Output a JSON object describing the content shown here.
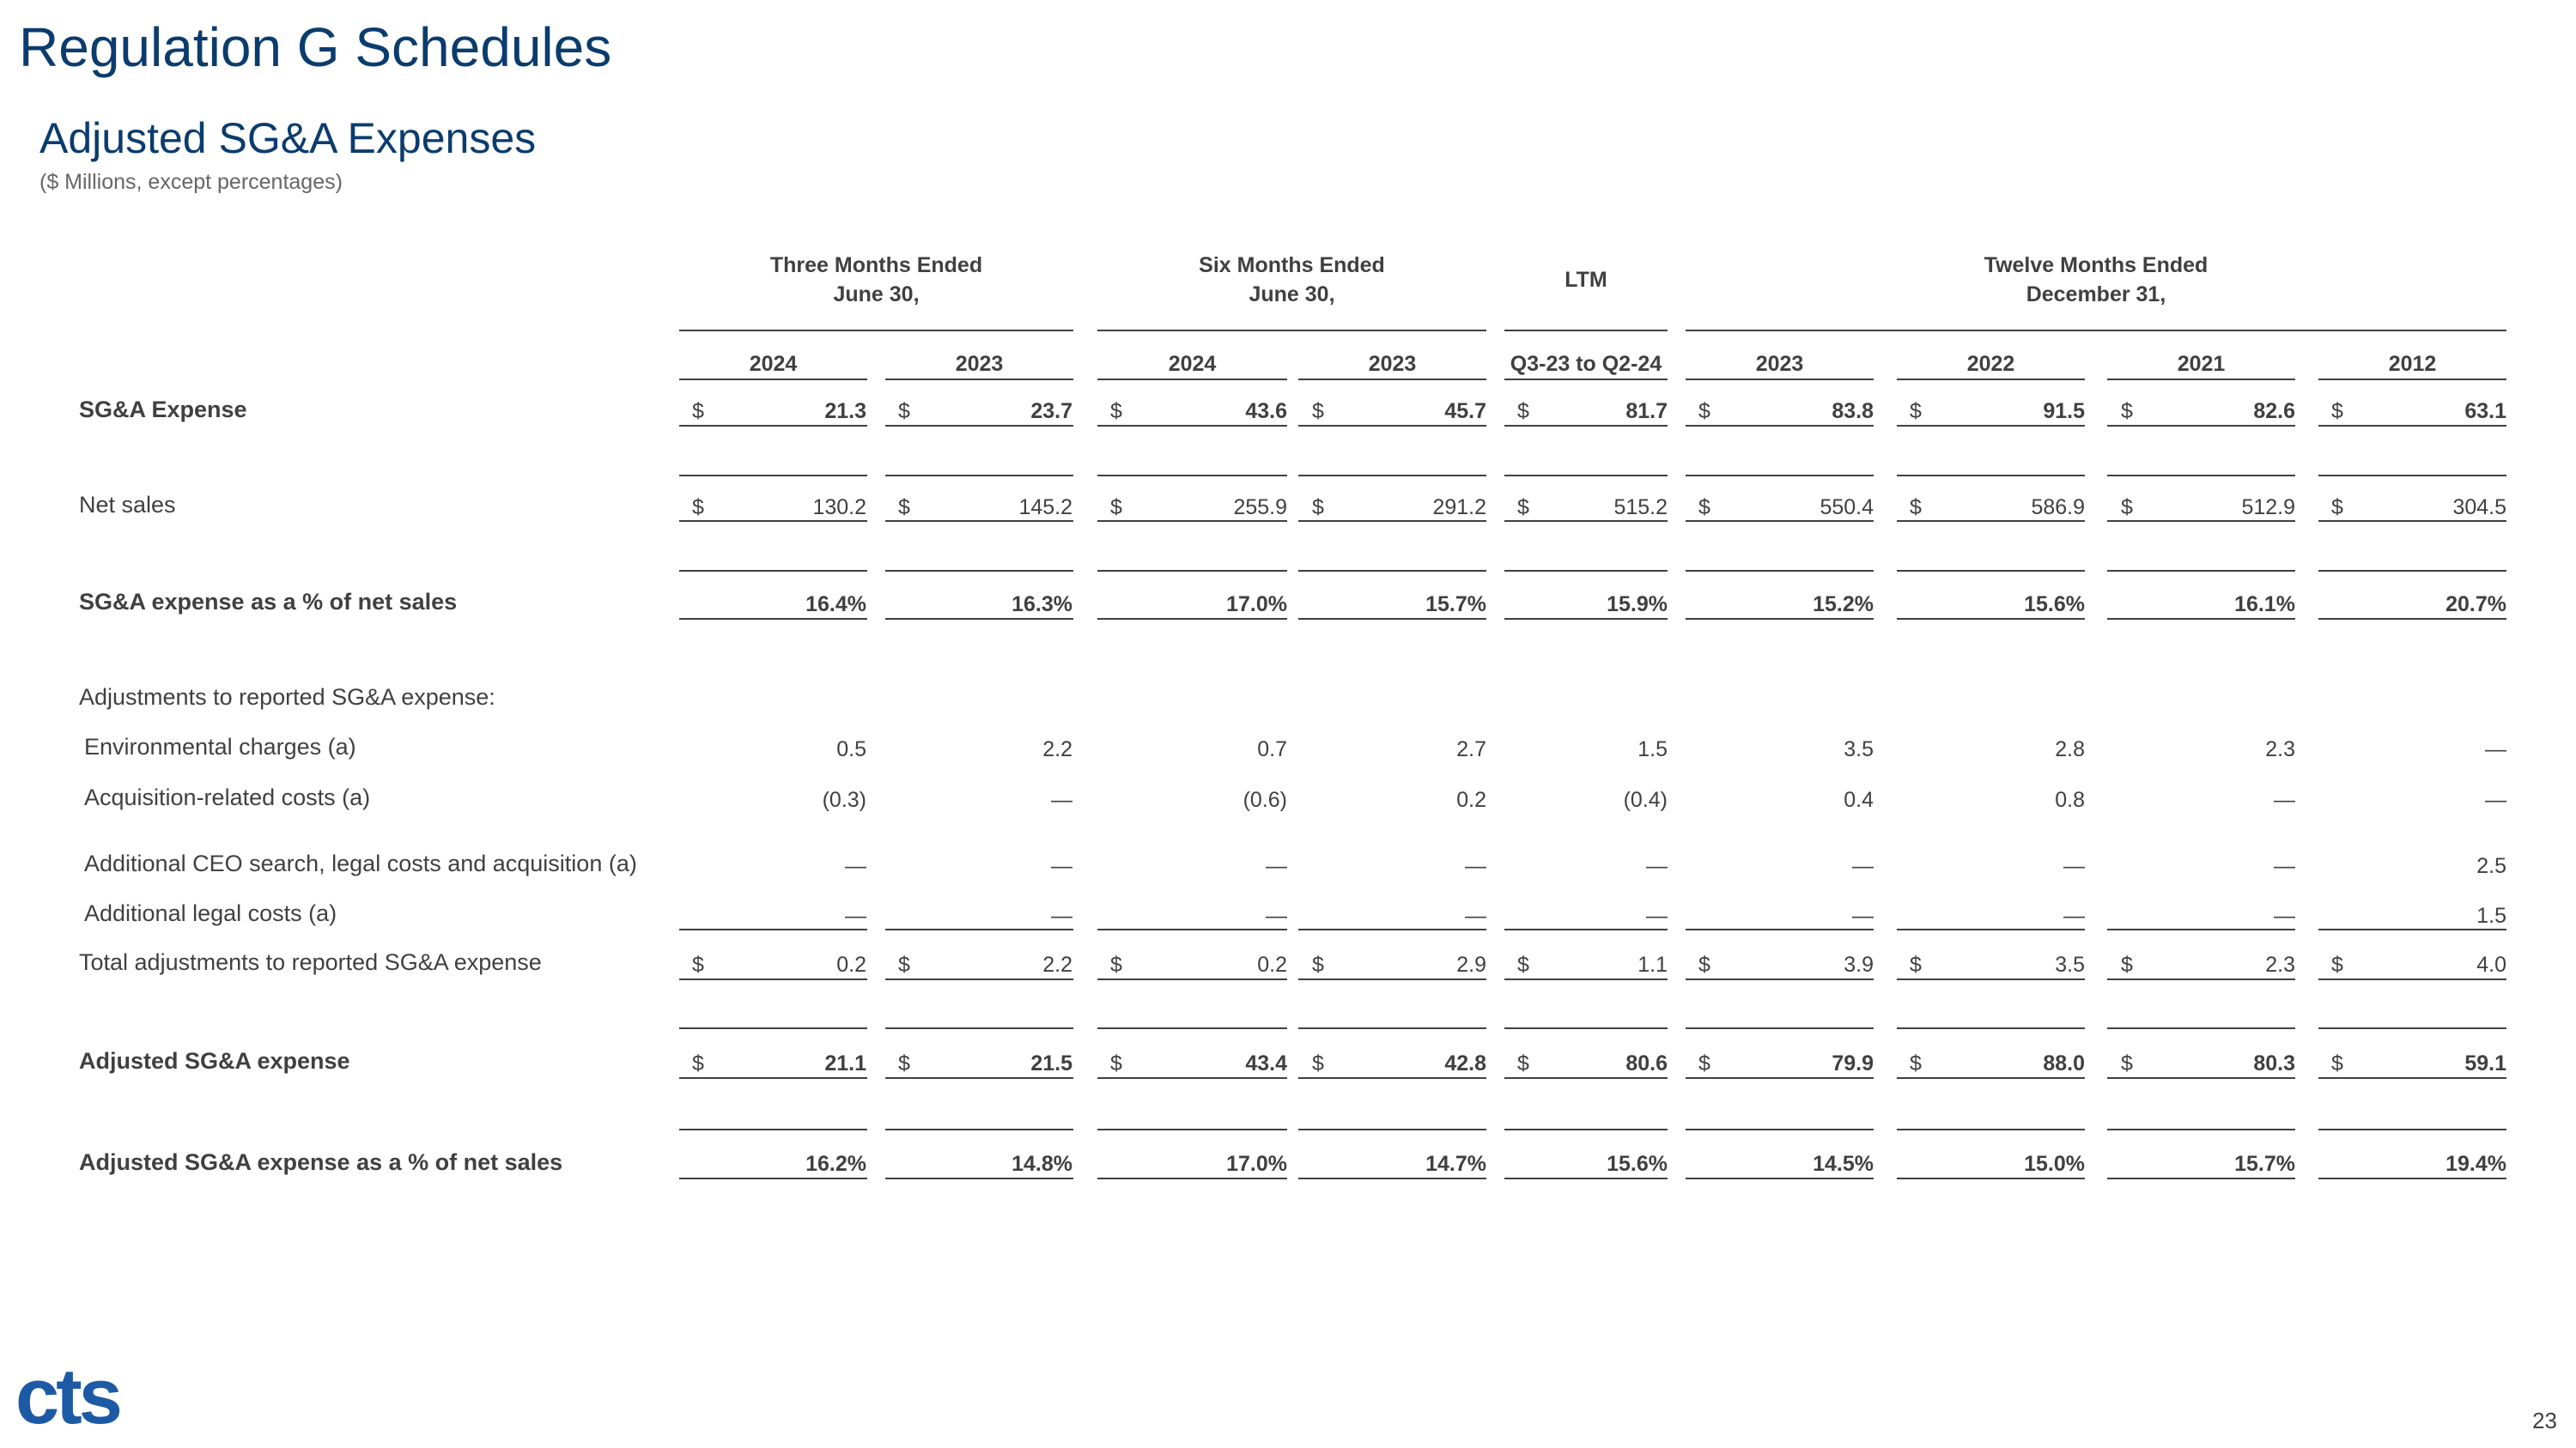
{
  "header": {
    "title": "Regulation G Schedules",
    "subtitle": "Adjusted SG&A Expenses",
    "units": "($ Millions, except percentages)"
  },
  "table": {
    "groups": [
      {
        "label": [
          "Three Months Ended",
          "June 30,"
        ],
        "span": [
          0,
          1
        ]
      },
      {
        "label": [
          "Six Months Ended",
          "June 30,"
        ],
        "span": [
          2,
          3
        ]
      },
      {
        "label": [
          "LTM"
        ],
        "span": [
          4,
          4
        ]
      },
      {
        "label": [
          "Twelve Months Ended",
          "December 31,"
        ],
        "span": [
          5,
          8
        ]
      }
    ],
    "columns": [
      "2024",
      "2023",
      "2024",
      "2023",
      "Q3-23 to Q2-24",
      "2023",
      "2022",
      "2021",
      "2012"
    ],
    "rows": [
      {
        "label": "SG&A Expense",
        "bold": true,
        "currency": "$",
        "cells": [
          "21.3",
          "23.7",
          "43.6",
          "45.7",
          "81.7",
          "83.8",
          "91.5",
          "82.6",
          "63.1"
        ]
      },
      {
        "label": "Net sales",
        "currency": "$",
        "cells": [
          "130.2",
          "145.2",
          "255.9",
          "291.2",
          "515.2",
          "550.4",
          "586.9",
          "512.9",
          "304.5"
        ]
      },
      {
        "label": "SG&A expense as a % of net sales",
        "bold": true,
        "cells": [
          "16.4%",
          "16.3%",
          "17.0%",
          "15.7%",
          "15.9%",
          "15.2%",
          "15.6%",
          "16.1%",
          "20.7%"
        ]
      },
      {
        "label": "Adjustments to reported SG&A expense:"
      },
      {
        "label": "Environmental charges (a)",
        "cells": [
          "0.5",
          "2.2",
          "0.7",
          "2.7",
          "1.5",
          "3.5",
          "2.8",
          "2.3",
          "—"
        ]
      },
      {
        "label": "Acquisition-related costs (a)",
        "cells": [
          "(0.3)",
          "—",
          "(0.6)",
          "0.2",
          "(0.4)",
          "0.4",
          "0.8",
          "—",
          "—"
        ]
      },
      {
        "label": "Additional CEO search, legal costs and acquisition (a)",
        "cells": [
          "—",
          "—",
          "—",
          "—",
          "—",
          "—",
          "—",
          "—",
          "2.5"
        ]
      },
      {
        "label": "Additional legal costs (a)",
        "cells": [
          "—",
          "—",
          "—",
          "—",
          "—",
          "—",
          "—",
          "—",
          "1.5"
        ]
      },
      {
        "label": "Total adjustments to reported SG&A expense",
        "currency": "$",
        "cells": [
          "0.2",
          "2.2",
          "0.2",
          "2.9",
          "1.1",
          "3.9",
          "3.5",
          "2.3",
          "4.0"
        ]
      },
      {
        "label": "Adjusted SG&A expense",
        "bold": true,
        "currency": "$",
        "cells": [
          "21.1",
          "21.5",
          "43.4",
          "42.8",
          "80.6",
          "79.9",
          "88.0",
          "80.3",
          "59.1"
        ]
      },
      {
        "label": "Adjusted SG&A expense as a % of net sales",
        "bold": true,
        "cells": [
          "16.2%",
          "14.8%",
          "17.0%",
          "14.7%",
          "15.6%",
          "14.5%",
          "15.0%",
          "15.7%",
          "19.4%"
        ]
      }
    ]
  },
  "footer": {
    "logo": "cts",
    "page_number": "23"
  }
}
